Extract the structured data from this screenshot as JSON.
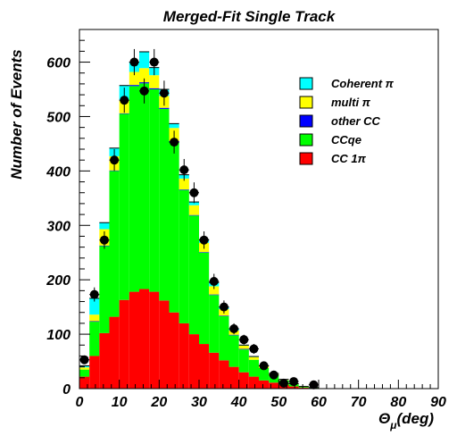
{
  "chart_data": {
    "type": "bar",
    "stacked": true,
    "title": "Merged-Fit Single Track",
    "xlabel_symbol": "Θ",
    "xlabel_subscript": "μ",
    "xlabel_unit": "(deg)",
    "ylabel": "Number of Events",
    "xlim": [
      0,
      90
    ],
    "ylim": [
      0,
      660
    ],
    "bin_width": 2.5,
    "x_ticks": [
      0,
      10,
      20,
      30,
      40,
      50,
      60,
      70,
      80,
      90
    ],
    "y_ticks": [
      0,
      100,
      200,
      300,
      400,
      500,
      600
    ],
    "bin_edges_start": [
      0,
      2.5,
      5,
      7.5,
      10,
      12.5,
      15,
      17.5,
      20,
      22.5,
      25,
      27.5,
      30,
      32.5,
      35,
      37.5,
      40,
      42.5,
      45,
      47.5,
      50,
      52.5,
      55,
      57.5,
      60
    ],
    "series": [
      {
        "name": "CC 1π",
        "color": "#ff0000",
        "values": [
          22,
          60,
          102,
          132,
          163,
          178,
          183,
          178,
          162,
          140,
          120,
          100,
          82,
          66,
          52,
          40,
          30,
          22,
          15,
          11,
          7,
          4,
          2,
          1,
          0
        ]
      },
      {
        "name": "CCqe",
        "color": "#00ff00",
        "values": [
          13,
          63,
          160,
          268,
          342,
          378,
          378,
          372,
          352,
          313,
          245,
          218,
          168,
          106,
          81,
          58,
          42,
          31,
          23,
          14,
          8,
          4,
          2,
          1,
          0
        ]
      },
      {
        "name": "other CC",
        "color": "#0000ff",
        "values": [
          0,
          1,
          1,
          1,
          1,
          2,
          2,
          2,
          2,
          2,
          1,
          1,
          1,
          1,
          1,
          1,
          1,
          0,
          0,
          0,
          0,
          0,
          0,
          0,
          0
        ]
      },
      {
        "name": "multi π",
        "color": "#ffff00",
        "values": [
          4,
          12,
          30,
          26,
          24,
          24,
          26,
          24,
          22,
          24,
          20,
          18,
          17,
          15,
          12,
          8,
          6,
          5,
          3,
          2,
          1,
          1,
          0,
          0,
          0
        ]
      },
      {
        "name": "Coherent π",
        "color": "#00ffff",
        "values": [
          3,
          30,
          12,
          15,
          27,
          18,
          30,
          14,
          12,
          8,
          7,
          6,
          6,
          7,
          4,
          3,
          1,
          1,
          1,
          1,
          1,
          0,
          0,
          0,
          0
        ]
      }
    ],
    "legend_order": [
      "Coherent π",
      "multi π",
      "other CC",
      "CCqe",
      "CC 1π"
    ],
    "legend_position": "top-right",
    "data_points": {
      "x": [
        1.25,
        3.75,
        6.25,
        8.75,
        11.25,
        13.75,
        16.25,
        18.75,
        21.25,
        23.75,
        26.25,
        28.75,
        31.25,
        33.75,
        36.25,
        38.75,
        41.25,
        43.75,
        46.25,
        48.75,
        51.25,
        53.75,
        58.75
      ],
      "y": [
        53,
        173,
        273,
        420,
        530,
        600,
        547,
        600,
        543,
        453,
        402,
        360,
        273,
        197,
        150,
        110,
        90,
        73,
        42,
        25,
        10,
        13,
        7
      ],
      "err": [
        7,
        13,
        16,
        20,
        23,
        24,
        23,
        24,
        23,
        21,
        20,
        19,
        16,
        14,
        12,
        10,
        9,
        9,
        7,
        5,
        3,
        4,
        3
      ]
    }
  }
}
